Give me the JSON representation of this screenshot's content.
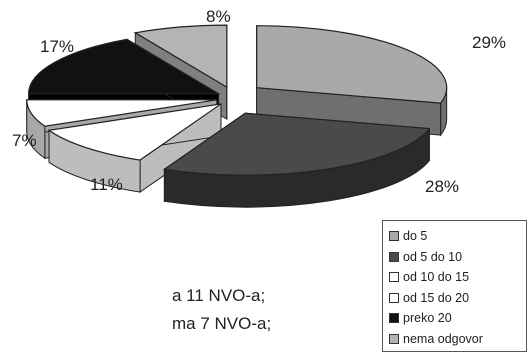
{
  "chart_data": {
    "type": "pie",
    "style": "3d-exploded",
    "title": "",
    "slices": [
      {
        "label": "do 5",
        "value": 29,
        "percent_label": "29%",
        "color": "#a9a9a9",
        "side": "#6f6f6f"
      },
      {
        "label": "od 5 do 10",
        "value": 28,
        "percent_label": "28%",
        "color": "#4a4a4a",
        "side": "#2a2a2a"
      },
      {
        "label": "od 10 do 15",
        "value": 11,
        "percent_label": "11%",
        "color": "#ffffff",
        "side": "#bdbdbd"
      },
      {
        "label": "od 15 do 20",
        "value": 7,
        "percent_label": "7%",
        "color": "#ffffff",
        "side": "#a8a8a8"
      },
      {
        "label": "preko 20",
        "value": 17,
        "percent_label": "17%",
        "color": "#111111",
        "side": "#000000"
      },
      {
        "label": "nema odgovor",
        "value": 8,
        "percent_label": "8%",
        "color": "#b4b4b4",
        "side": "#808080"
      }
    ],
    "legend_position": "bottom-right"
  },
  "legend": {
    "items": [
      "do 5",
      "od 5 do 10",
      "od 10 do 15",
      "od 15 do 20",
      "preko 20",
      "nema odgovor"
    ]
  },
  "body_text": {
    "line1": "a 11 NVO-a;",
    "line2": "ma 7 NVO-a;"
  }
}
